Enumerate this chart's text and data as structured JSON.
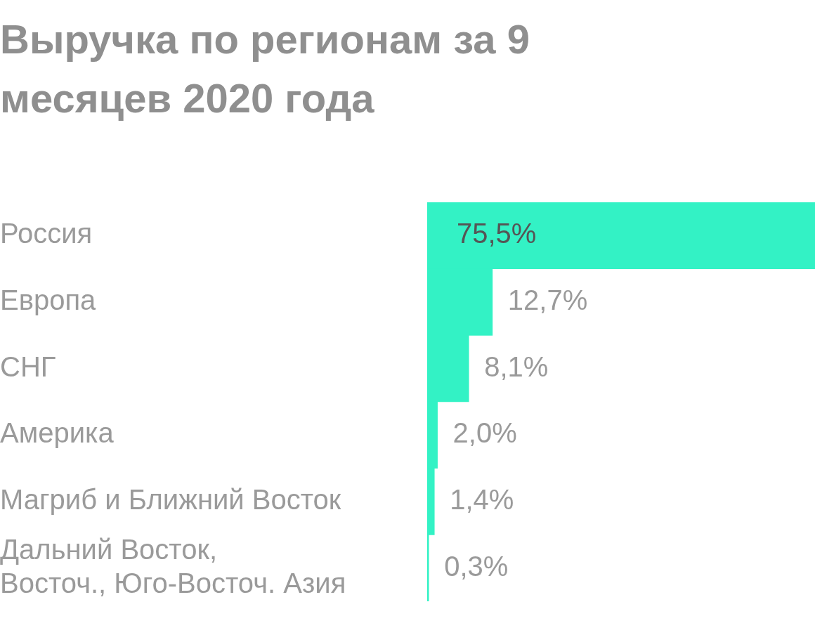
{
  "chart_data": {
    "type": "bar",
    "orientation": "horizontal",
    "title": "Выручка по регионам за 9 месяцев 2020 года",
    "categories": [
      "Россия",
      "Европа",
      "СНГ",
      "Америка",
      "Магриб и Ближний Восток",
      "Дальний Восток,\nВосточ., Юго-Восточ. Азия"
    ],
    "values": [
      75.5,
      12.7,
      8.1,
      2.0,
      1.4,
      0.3
    ],
    "value_labels": [
      "75,5%",
      "12,7%",
      "8,1%",
      "2,0%",
      "1,4%",
      "0,3%"
    ],
    "color": "#33f2c5",
    "grid": false,
    "legend": false
  }
}
